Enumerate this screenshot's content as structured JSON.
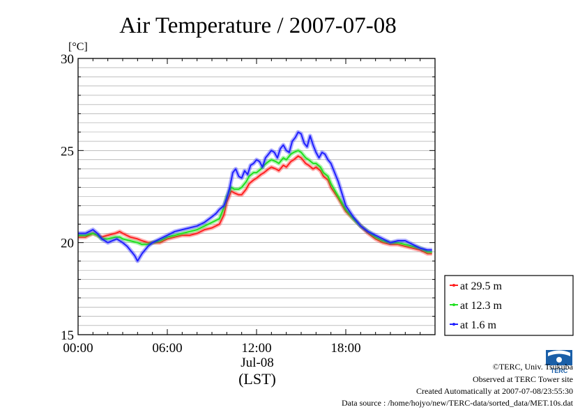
{
  "chart_data": {
    "type": "line",
    "title": "Air Temperature / 2007-07-08",
    "ylabel": "[°C]",
    "xlabel": "(LST)",
    "x_date_label": "Jul-08",
    "ylim": [
      15,
      30
    ],
    "xlim": [
      0,
      24
    ],
    "y_ticks": [
      15,
      20,
      25,
      30
    ],
    "y_tick_labels": [
      "15",
      "20",
      "25",
      "30"
    ],
    "x_ticks": [
      0,
      6,
      12,
      18
    ],
    "x_tick_labels": [
      "00:00",
      "06:00",
      "12:00",
      "18:00"
    ],
    "grid": true,
    "legend_position": "lower-right outside",
    "x_units": "hours LST",
    "series": [
      {
        "name": "at 29.5 m",
        "color": "#ff2020",
        "x": [
          0,
          0.5,
          1,
          1.3,
          1.6,
          2.0,
          2.5,
          2.8,
          3.0,
          3.5,
          4.0,
          4.3,
          4.7,
          5.0,
          5.5,
          6.0,
          6.5,
          7.0,
          7.5,
          8.0,
          8.5,
          9.0,
          9.5,
          9.8,
          10.0,
          10.3,
          10.5,
          10.8,
          11.0,
          11.3,
          11.5,
          11.8,
          12.0,
          12.3,
          12.5,
          12.8,
          13.0,
          13.3,
          13.5,
          13.8,
          14.0,
          14.3,
          14.5,
          14.8,
          15.0,
          15.3,
          15.5,
          15.8,
          16.0,
          16.3,
          16.5,
          16.8,
          17.0,
          17.5,
          18.0,
          18.5,
          19.0,
          19.5,
          20.0,
          20.5,
          21.0,
          21.5,
          22.0,
          22.5,
          23.0,
          23.5,
          23.8
        ],
        "values": [
          20.3,
          20.3,
          20.5,
          20.4,
          20.3,
          20.4,
          20.5,
          20.6,
          20.5,
          20.3,
          20.2,
          20.1,
          20.0,
          20.0,
          20.0,
          20.2,
          20.3,
          20.4,
          20.4,
          20.5,
          20.7,
          20.8,
          21.0,
          21.5,
          22.2,
          22.8,
          22.7,
          22.6,
          22.6,
          22.9,
          23.2,
          23.4,
          23.5,
          23.7,
          23.8,
          24.0,
          24.1,
          24.0,
          23.9,
          24.2,
          24.1,
          24.4,
          24.5,
          24.7,
          24.6,
          24.3,
          24.2,
          24.0,
          24.1,
          23.9,
          23.6,
          23.4,
          23.0,
          22.4,
          21.7,
          21.3,
          20.9,
          20.5,
          20.2,
          20.0,
          19.9,
          19.9,
          19.8,
          19.7,
          19.6,
          19.4,
          19.4
        ]
      },
      {
        "name": "at 12.3 m",
        "color": "#20e020",
        "x": [
          0,
          0.5,
          1,
          1.3,
          1.6,
          2.0,
          2.5,
          2.8,
          3.0,
          3.5,
          4.0,
          4.3,
          4.7,
          5.0,
          5.5,
          6.0,
          6.5,
          7.0,
          7.5,
          8.0,
          8.5,
          9.0,
          9.5,
          9.8,
          10.0,
          10.3,
          10.5,
          10.8,
          11.0,
          11.3,
          11.5,
          11.8,
          12.0,
          12.3,
          12.5,
          12.8,
          13.0,
          13.3,
          13.5,
          13.8,
          14.0,
          14.3,
          14.5,
          14.8,
          15.0,
          15.3,
          15.5,
          15.8,
          16.0,
          16.3,
          16.5,
          16.8,
          17.0,
          17.5,
          18.0,
          18.5,
          19.0,
          19.5,
          20.0,
          20.5,
          21.0,
          21.5,
          22.0,
          22.5,
          23.0,
          23.5,
          23.8
        ],
        "values": [
          20.4,
          20.4,
          20.5,
          20.4,
          20.2,
          20.2,
          20.3,
          20.3,
          20.2,
          20.1,
          20.0,
          19.9,
          19.9,
          20.0,
          20.1,
          20.3,
          20.4,
          20.5,
          20.6,
          20.7,
          20.9,
          21.1,
          21.3,
          21.9,
          22.5,
          23.0,
          22.9,
          22.9,
          23.0,
          23.3,
          23.6,
          23.8,
          23.8,
          24.0,
          24.2,
          24.4,
          24.5,
          24.4,
          24.3,
          24.6,
          24.5,
          24.8,
          24.9,
          25.0,
          24.9,
          24.6,
          24.5,
          24.3,
          24.3,
          24.1,
          23.8,
          23.6,
          23.2,
          22.5,
          21.8,
          21.3,
          20.9,
          20.6,
          20.3,
          20.1,
          20.0,
          20.0,
          19.9,
          19.8,
          19.7,
          19.5,
          19.5
        ]
      },
      {
        "name": "at 1.6 m",
        "color": "#2020ff",
        "x": [
          0,
          0.5,
          1,
          1.3,
          1.6,
          2.0,
          2.3,
          2.6,
          3.0,
          3.3,
          3.6,
          3.8,
          4.0,
          4.3,
          4.7,
          5.0,
          5.5,
          6.0,
          6.5,
          7.0,
          7.5,
          8.0,
          8.5,
          9.0,
          9.3,
          9.5,
          9.8,
          10.0,
          10.2,
          10.4,
          10.6,
          10.8,
          11.0,
          11.2,
          11.4,
          11.6,
          11.8,
          12.0,
          12.2,
          12.4,
          12.6,
          12.8,
          13.0,
          13.2,
          13.4,
          13.6,
          13.8,
          14.0,
          14.2,
          14.4,
          14.6,
          14.8,
          15.0,
          15.2,
          15.4,
          15.6,
          15.8,
          16.0,
          16.2,
          16.4,
          16.6,
          16.8,
          17.0,
          17.5,
          18.0,
          18.5,
          19.0,
          19.5,
          20.0,
          20.5,
          21.0,
          21.5,
          22.0,
          22.5,
          23.0,
          23.5,
          23.8
        ],
        "values": [
          20.5,
          20.5,
          20.7,
          20.5,
          20.2,
          20.0,
          20.1,
          20.2,
          20.0,
          19.8,
          19.5,
          19.3,
          19.0,
          19.4,
          19.8,
          20.0,
          20.2,
          20.4,
          20.6,
          20.7,
          20.8,
          20.9,
          21.1,
          21.4,
          21.6,
          21.8,
          22.0,
          22.4,
          23.0,
          23.8,
          24.0,
          23.6,
          23.5,
          23.9,
          23.7,
          24.2,
          24.3,
          24.5,
          24.4,
          24.1,
          24.6,
          24.8,
          25.0,
          24.9,
          24.6,
          25.1,
          25.3,
          25.0,
          24.9,
          25.5,
          25.7,
          26.0,
          25.9,
          25.4,
          25.2,
          25.8,
          25.3,
          24.9,
          24.6,
          24.9,
          24.8,
          24.5,
          24.3,
          23.3,
          22.0,
          21.4,
          20.9,
          20.6,
          20.4,
          20.2,
          20.0,
          20.1,
          20.1,
          19.9,
          19.7,
          19.6,
          19.6
        ]
      }
    ]
  },
  "credits": {
    "copyright": "©TERC, Univ. Tsukuba",
    "observed": "Observed at TERC Tower site",
    "created": "Created Automatically at 2007-07-08/23:55:30",
    "source": "Data source : /home/hojyo/new/TERC-data/sorted_data/MET.10s.dat"
  },
  "logo_text": "TERC"
}
